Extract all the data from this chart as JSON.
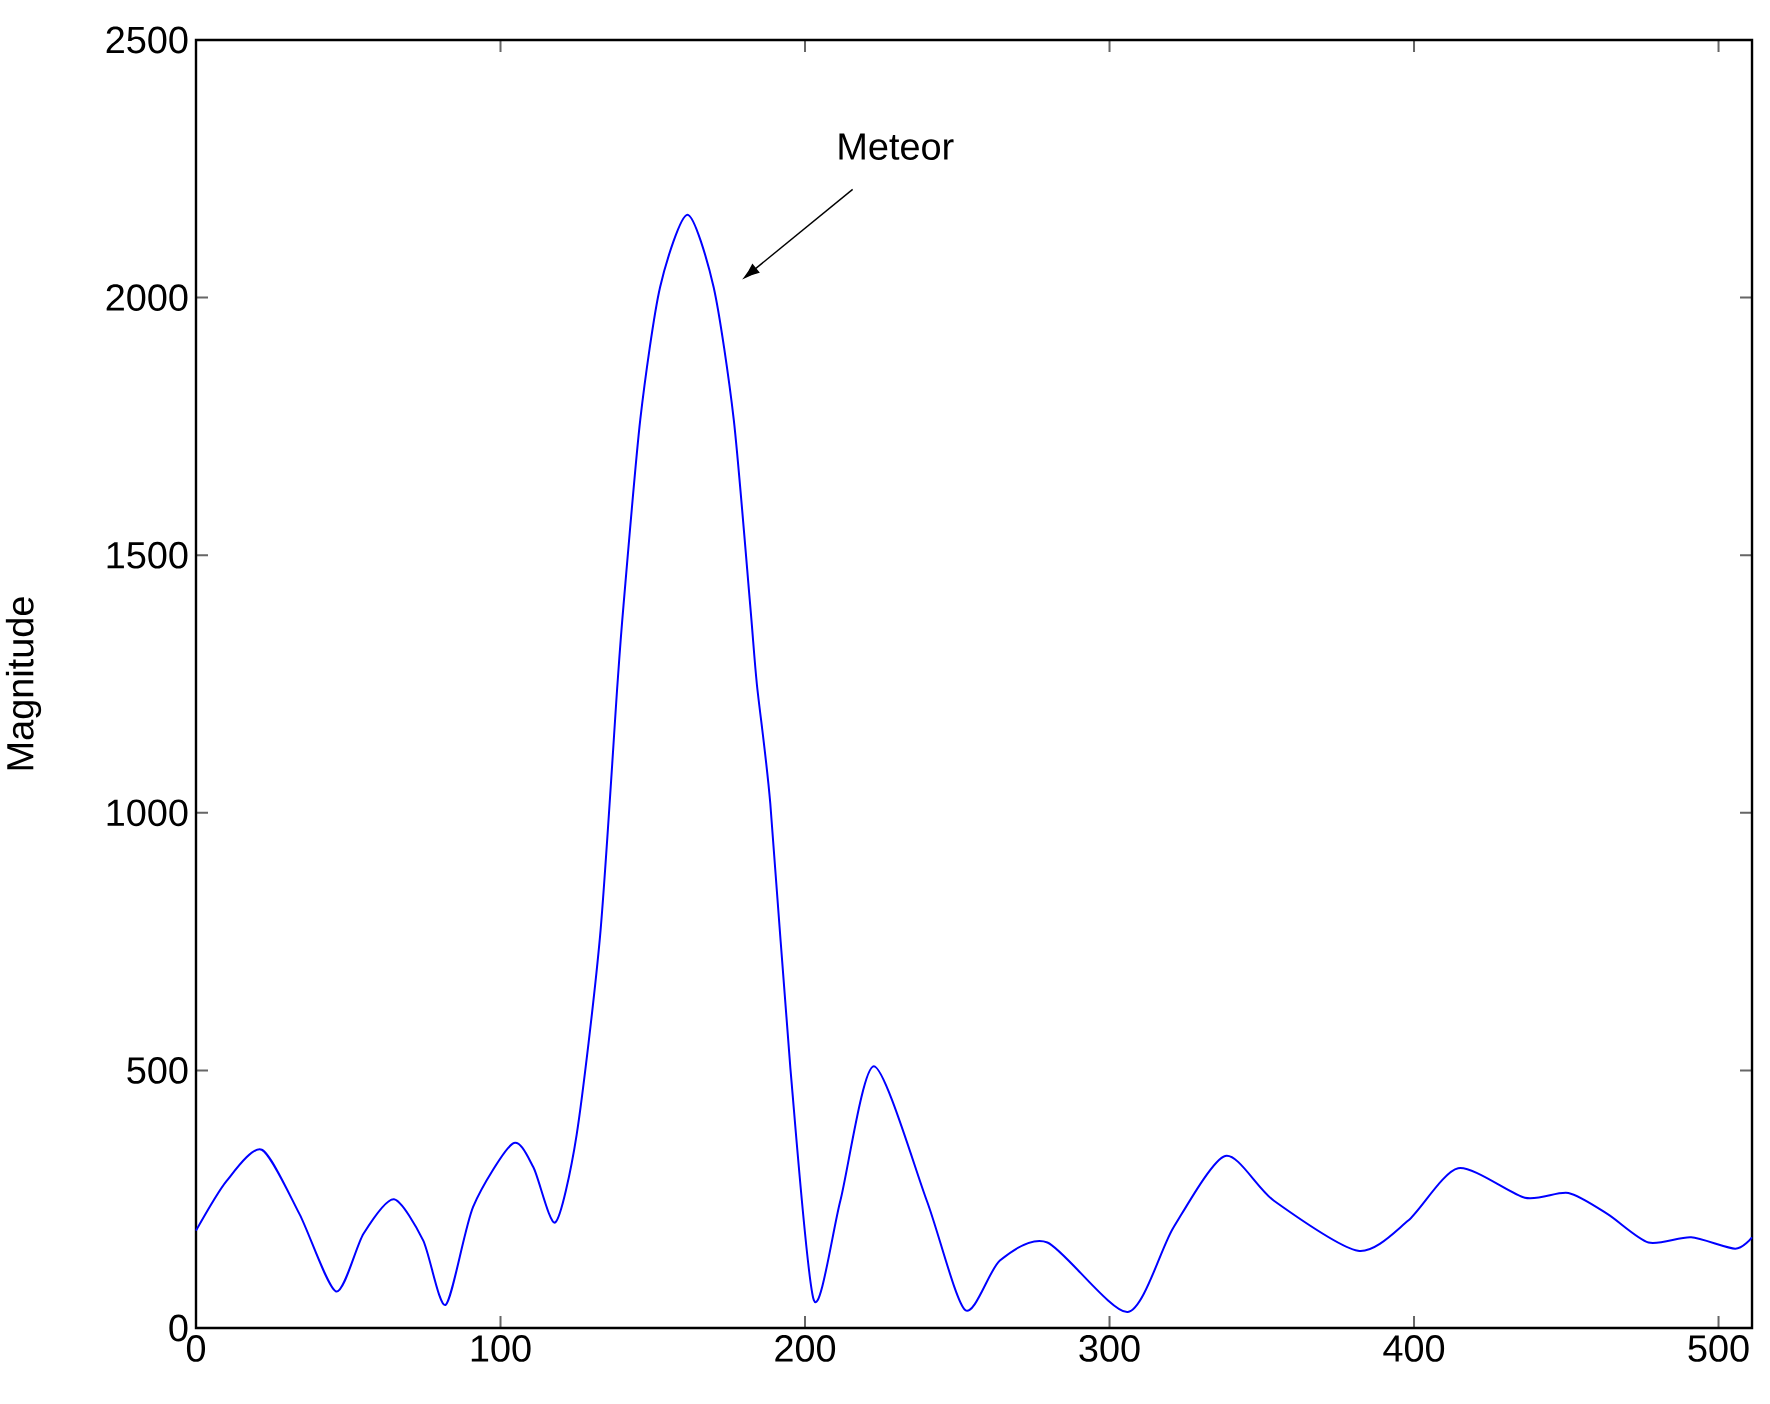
{
  "chart_data": {
    "type": "line",
    "ylabel": "Magnitude",
    "x": [
      0,
      10,
      21.6,
      34,
      46,
      55,
      65,
      74.6,
      82,
      91,
      104,
      110.8,
      118,
      125,
      132.7,
      138.4,
      140.4,
      145.9,
      152.4,
      161.4,
      170,
      176.6,
      182,
      184.2,
      188.6,
      195.2,
      202.9,
      211.6,
      222.6,
      240,
      252.6,
      264,
      279.6,
      306,
      321,
      338,
      354,
      381.6,
      398,
      414.5,
      436.4,
      450.7,
      463.6,
      477,
      491,
      505.5,
      511
    ],
    "series": [
      {
        "color": "#0000ff",
        "values": [
          189,
          285,
          346,
          221,
          71,
          183,
          250,
          170,
          45,
          235,
          358,
          312,
          205,
          375,
          761,
          1249,
          1403,
          1763,
          2020,
          2161,
          2020,
          1763,
          1403,
          1249,
          1018,
          504,
          54,
          247,
          508,
          247,
          35,
          131,
          166,
          31,
          195,
          334,
          247,
          150,
          208,
          310,
          253,
          262,
          221,
          166,
          176,
          154,
          176
        ]
      }
    ],
    "xlim": [
      0,
      511
    ],
    "ylim": [
      0,
      2500
    ],
    "xticks": [
      0,
      100,
      200,
      300,
      400,
      500
    ],
    "yticks": [
      0,
      500,
      1000,
      1500,
      2000,
      2500
    ],
    "annotations": [
      "Meteor"
    ],
    "marker": "none",
    "line_style": "solid"
  }
}
